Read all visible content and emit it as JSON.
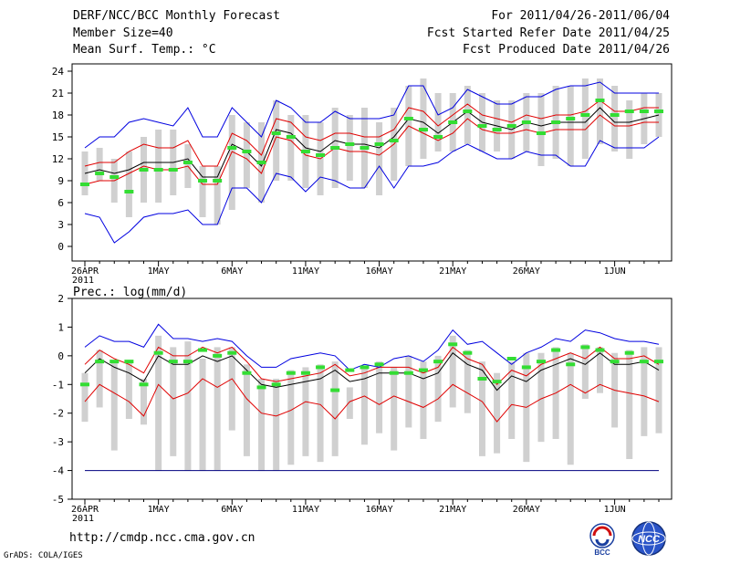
{
  "header": {
    "title": "DERF/NCC/BCC Monthly Forecast",
    "member_size": "Member Size=40",
    "var_top": "Mean Surf. Temp.: °C",
    "period": "For 2011/04/26-2011/06/04",
    "fcst_started": "Fcst Started Refer Date 2011/04/25",
    "fcst_produced": "Fcst Produced Date 2011/04/26"
  },
  "footer": {
    "url": "http://cmdp.ncc.cma.gov.cn",
    "grads": "GrADS: COLA/IGES",
    "logo_left": "BCC",
    "logo_right": "NCC"
  },
  "colors": {
    "mean": "#000000",
    "spread": "#e00000",
    "extreme": "#0000e0",
    "box": "#d0d0d0",
    "obs": "#33dd33",
    "baseline": "#000080"
  },
  "chart_data": [
    {
      "type": "line",
      "title": "Mean Surf. Temp.: °C",
      "x_days": 40,
      "x_tick_labels": [
        "26APR",
        "1MAY",
        "6MAY",
        "11MAY",
        "16MAY",
        "21MAY",
        "26MAY",
        "1JUN"
      ],
      "x_tick_index": [
        0,
        5,
        10,
        15,
        20,
        25,
        30,
        36
      ],
      "x_year_label": "2011",
      "ylim": [
        -2,
        25
      ],
      "yticks": [
        0,
        3,
        6,
        9,
        12,
        15,
        18,
        21,
        24
      ],
      "series": [
        {
          "name": "ensemble mean",
          "color": "black",
          "values": [
            10,
            10.5,
            10,
            10.5,
            11.5,
            11.5,
            11.5,
            12,
            9.5,
            9.5,
            14,
            13,
            11,
            16,
            15.5,
            13.5,
            13,
            14.5,
            14,
            14,
            13.5,
            15,
            17.5,
            17,
            15.5,
            17,
            18.5,
            17,
            16.5,
            16,
            17,
            16.5,
            17,
            17,
            17,
            19,
            17,
            17,
            17.5,
            18
          ]
        },
        {
          "name": "mean + spread",
          "color": "red",
          "values": [
            11,
            11.5,
            11.5,
            13,
            14,
            13.5,
            13.5,
            14.5,
            11,
            11,
            15.5,
            14.5,
            12.5,
            17.5,
            17,
            15,
            14.5,
            15.5,
            15.5,
            15,
            15,
            16,
            19,
            18.5,
            16.5,
            18,
            19.5,
            18,
            17.5,
            17,
            18,
            17.5,
            18,
            18,
            18.5,
            20,
            18.5,
            18.5,
            19,
            19
          ]
        },
        {
          "name": "mean - spread",
          "color": "red",
          "values": [
            8.5,
            9,
            9,
            10,
            11,
            10.5,
            10.5,
            11,
            8.5,
            8.5,
            13,
            12,
            10,
            15,
            14.5,
            12.5,
            12,
            13.5,
            13,
            13,
            12.5,
            14,
            16.5,
            15.5,
            14.5,
            15.5,
            17.5,
            16,
            15.5,
            15.5,
            16,
            15.5,
            16,
            16,
            16,
            18,
            16.5,
            16.5,
            17,
            17
          ]
        },
        {
          "name": "ensemble max",
          "color": "blue",
          "values": [
            13.5,
            15,
            15,
            17,
            17.5,
            17,
            16.5,
            19,
            15,
            15,
            19,
            17,
            15,
            20,
            19,
            17,
            17,
            18.5,
            17.5,
            17.5,
            17.5,
            18,
            22,
            22,
            18,
            19,
            21.5,
            20.5,
            19.5,
            19.5,
            20.5,
            20.5,
            21.5,
            22,
            22,
            22.5,
            21,
            21,
            21,
            21
          ]
        },
        {
          "name": "ensemble min",
          "color": "blue",
          "values": [
            4.5,
            4,
            0.5,
            2,
            4,
            4.5,
            4.5,
            5,
            3,
            3,
            8,
            8,
            6,
            10,
            9.5,
            7.5,
            9.5,
            9,
            8,
            8,
            11,
            8,
            11,
            11,
            11.5,
            13,
            14,
            13,
            12,
            12,
            13,
            12.5,
            12.5,
            11,
            11,
            14.5,
            13.5,
            13.5,
            13.5,
            15
          ]
        }
      ],
      "boxes": [
        [
          7,
          13
        ],
        [
          9,
          13.5
        ],
        [
          6,
          12
        ],
        [
          4,
          13
        ],
        [
          6,
          15
        ],
        [
          6,
          16
        ],
        [
          7,
          16
        ],
        [
          8,
          14
        ],
        [
          4,
          11
        ],
        [
          3,
          11
        ],
        [
          5,
          18
        ],
        [
          8,
          17
        ],
        [
          6,
          17
        ],
        [
          9,
          20
        ],
        [
          9,
          18
        ],
        [
          8,
          18
        ],
        [
          7,
          17
        ],
        [
          8,
          19
        ],
        [
          9,
          18
        ],
        [
          8,
          19
        ],
        [
          7,
          17
        ],
        [
          9,
          19
        ],
        [
          11,
          22
        ],
        [
          12,
          23
        ],
        [
          13,
          21
        ],
        [
          13,
          21
        ],
        [
          14,
          22
        ],
        [
          13,
          21
        ],
        [
          13,
          20
        ],
        [
          12,
          20
        ],
        [
          13,
          21
        ],
        [
          11,
          21
        ],
        [
          12,
          22
        ],
        [
          11,
          22
        ],
        [
          12,
          23
        ],
        [
          14,
          23
        ],
        [
          13,
          22
        ],
        [
          12,
          20
        ],
        [
          14,
          21
        ],
        [
          15,
          21
        ]
      ],
      "observed": [
        8.5,
        10,
        9.5,
        7.5,
        10.5,
        10.5,
        10.5,
        11.5,
        9,
        9,
        13.5,
        13,
        11.5,
        15.5,
        15,
        13,
        12.5,
        13.5,
        14,
        13.5,
        14,
        14.5,
        17.5,
        16,
        15,
        17,
        18.5,
        16.5,
        16,
        16.5,
        17,
        15.5,
        17,
        17.5,
        18,
        20,
        18,
        18.5,
        18.5,
        18.5
      ]
    },
    {
      "type": "line",
      "title": "Prec.: log(mm/d)",
      "x_days": 40,
      "x_tick_labels": [
        "26APR",
        "1MAY",
        "6MAY",
        "11MAY",
        "16MAY",
        "21MAY",
        "26MAY",
        "1JUN"
      ],
      "x_tick_index": [
        0,
        5,
        10,
        15,
        20,
        25,
        30,
        36
      ],
      "x_year_label": "2011",
      "ylim": [
        -5,
        2
      ],
      "yticks": [
        -5,
        -4,
        -3,
        -2,
        -1,
        0,
        1,
        2
      ],
      "baseline": -4,
      "series": [
        {
          "name": "ensemble mean",
          "color": "black",
          "values": [
            -0.6,
            -0.1,
            -0.4,
            -0.6,
            -0.9,
            0,
            -0.3,
            -0.3,
            0,
            -0.2,
            0,
            -0.5,
            -1,
            -1.1,
            -1,
            -0.9,
            -0.8,
            -0.5,
            -0.9,
            -0.8,
            -0.6,
            -0.6,
            -0.6,
            -0.8,
            -0.6,
            0.1,
            -0.3,
            -0.5,
            -1.2,
            -0.7,
            -0.9,
            -0.5,
            -0.3,
            -0.1,
            -0.3,
            0.1,
            -0.3,
            -0.3,
            -0.2,
            -0.5
          ]
        },
        {
          "name": "mean + spread",
          "color": "red",
          "values": [
            -0.3,
            0.2,
            -0.1,
            -0.3,
            -0.6,
            0.3,
            0,
            0,
            0.3,
            0.1,
            0.3,
            -0.2,
            -0.8,
            -0.9,
            -0.8,
            -0.7,
            -0.6,
            -0.3,
            -0.7,
            -0.6,
            -0.4,
            -0.4,
            -0.4,
            -0.6,
            -0.4,
            0.3,
            -0.1,
            -0.3,
            -1,
            -0.5,
            -0.7,
            -0.3,
            -0.1,
            0.1,
            -0.1,
            0.3,
            -0.1,
            -0.1,
            0,
            -0.3
          ]
        },
        {
          "name": "mean - spread",
          "color": "red",
          "values": [
            -1.6,
            -1,
            -1.3,
            -1.6,
            -2.1,
            -1,
            -1.5,
            -1.3,
            -0.8,
            -1.1,
            -0.8,
            -1.5,
            -2,
            -2.1,
            -1.9,
            -1.6,
            -1.7,
            -2.2,
            -1.6,
            -1.4,
            -1.7,
            -1.4,
            -1.6,
            -1.8,
            -1.5,
            -1,
            -1.3,
            -1.6,
            -2.3,
            -1.7,
            -1.8,
            -1.5,
            -1.3,
            -1,
            -1.3,
            -1,
            -1.2,
            -1.3,
            -1.4,
            -1.6
          ]
        },
        {
          "name": "ensemble max",
          "color": "blue",
          "values": [
            0.3,
            0.7,
            0.5,
            0.5,
            0.3,
            1.1,
            0.6,
            0.6,
            0.5,
            0.6,
            0.5,
            0,
            -0.4,
            -0.4,
            -0.1,
            0,
            0.1,
            0,
            -0.5,
            -0.3,
            -0.4,
            -0.1,
            0,
            -0.2,
            0.2,
            0.9,
            0.4,
            0.5,
            0.1,
            -0.3,
            0.1,
            0.3,
            0.6,
            0.5,
            0.9,
            0.8,
            0.6,
            0.5,
            0.5,
            0.4
          ]
        }
      ],
      "boxes": [
        [
          -2.3,
          -0.6
        ],
        [
          -1.8,
          0.2
        ],
        [
          -3.3,
          -0.2
        ],
        [
          -2.2,
          -0.2
        ],
        [
          -2.4,
          -0.8
        ],
        [
          -4,
          0.7
        ],
        [
          -3.5,
          0.3
        ],
        [
          -4,
          0.5
        ],
        [
          -4,
          -0.1
        ],
        [
          -4,
          0.3
        ],
        [
          -2.6,
          0.3
        ],
        [
          -3.5,
          -0.3
        ],
        [
          -4,
          -0.8
        ],
        [
          -4,
          -0.8
        ],
        [
          -3.8,
          -0.5
        ],
        [
          -3.5,
          -0.4
        ],
        [
          -3.7,
          -0.3
        ],
        [
          -3.5,
          -0.2
        ],
        [
          -2.2,
          -1.1
        ],
        [
          -3.1,
          -0.4
        ],
        [
          -2.7,
          -0.2
        ],
        [
          -3.3,
          -0.4
        ],
        [
          -2.5,
          0
        ],
        [
          -2.9,
          -0.2
        ],
        [
          -2.3,
          0
        ],
        [
          -1.8,
          0.7
        ],
        [
          -2,
          0.2
        ],
        [
          -3.5,
          -0.2
        ],
        [
          -3.4,
          -0.6
        ],
        [
          -2.9,
          -0.2
        ],
        [
          -3.7,
          0.1
        ],
        [
          -3,
          0.1
        ],
        [
          -2.9,
          0.3
        ],
        [
          -3.8,
          0.1
        ],
        [
          -1.5,
          0.4
        ],
        [
          -1.3,
          0.3
        ],
        [
          -2.5,
          0.1
        ],
        [
          -3.6,
          0.2
        ],
        [
          -2.8,
          0.3
        ],
        [
          -2.7,
          0.3
        ]
      ],
      "observed": [
        -1,
        -0.2,
        -0.2,
        -0.2,
        -1,
        0.1,
        -0.2,
        -0.2,
        0.2,
        0,
        0.1,
        -0.6,
        -1.1,
        -1,
        -0.6,
        -0.6,
        -0.4,
        -1.2,
        -0.5,
        -0.4,
        -0.3,
        -0.6,
        -0.6,
        -0.5,
        -0.2,
        0.4,
        0.1,
        -0.8,
        -0.9,
        -0.1,
        -0.4,
        -0.2,
        0.2,
        -0.3,
        0.3,
        0.2,
        -0.2,
        0.1,
        -0.2,
        -0.2
      ]
    }
  ]
}
